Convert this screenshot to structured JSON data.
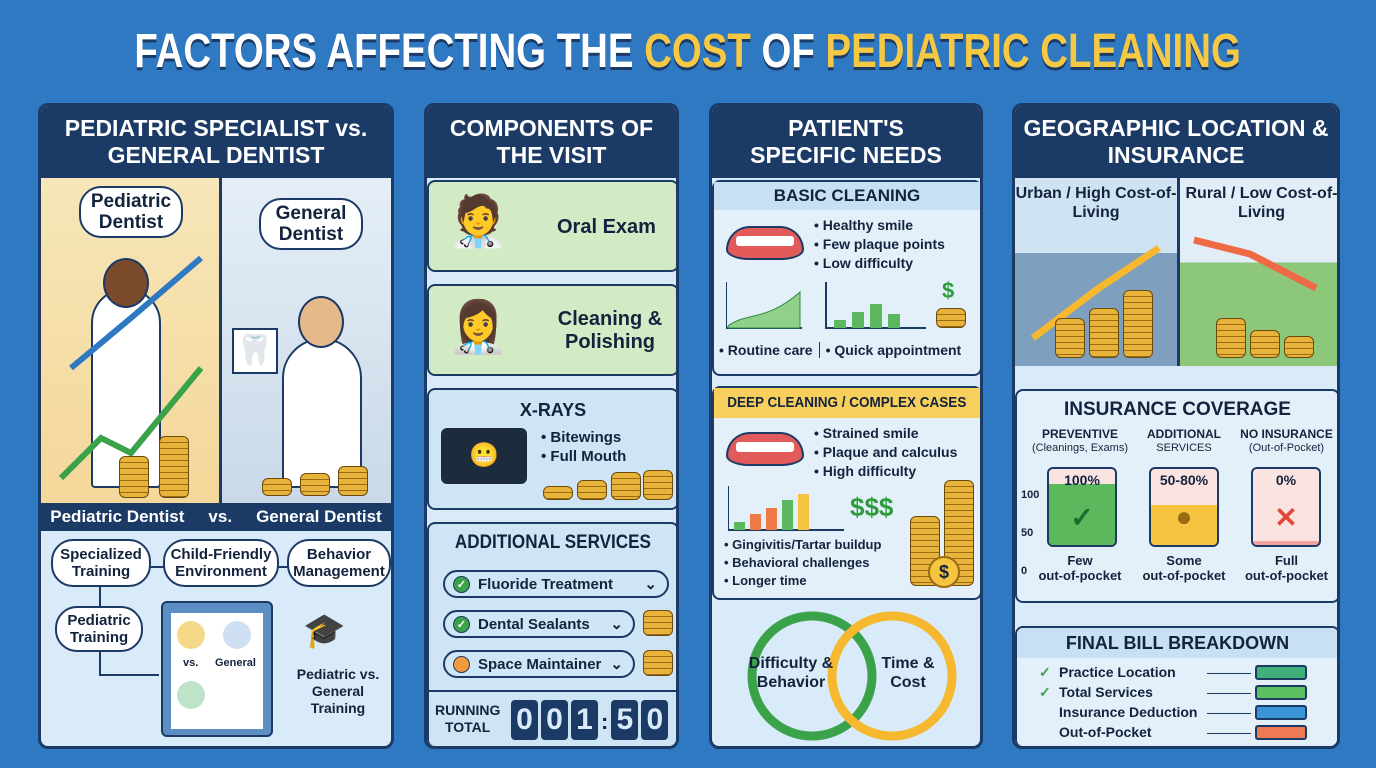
{
  "title": {
    "part1": "FACTORS AFFECTING THE ",
    "part2": "COST",
    "part3": " OF ",
    "part4": "PEDIATRIC CLEANING"
  },
  "panel1": {
    "heading": "PEDIATRIC SPECIALIST vs. GENERAL DENTIST",
    "bubble_left": "Pediatric Dentist",
    "bubble_right": "General Dentist",
    "compare_bar": {
      "left": "Pediatric Dentist",
      "vs": "vs.",
      "right": "General Dentist"
    },
    "factors": [
      "Specialized Training",
      "Child-Friendly Environment",
      "Behavior Management",
      "Pediatric Training"
    ],
    "clipboard": {
      "vs": "vs.",
      "general": "General"
    },
    "training_label": "Pediatric vs. General Training"
  },
  "panel2": {
    "heading": "COMPONENTS OF THE VISIT",
    "oral_exam": "Oral Exam",
    "cleaning": "Cleaning & Polishing",
    "xrays": {
      "title": "X-RAYS",
      "items": [
        "Bitewings",
        "Full Mouth"
      ]
    },
    "additional": {
      "title": "ADDITIONAL SERVICES",
      "items": [
        {
          "label": "Fluoride Treatment",
          "status": "checked"
        },
        {
          "label": "Dental Sealants",
          "status": "checked"
        },
        {
          "label": "Space Maintainer",
          "status": "pending"
        }
      ]
    },
    "running_total": {
      "label1": "RUNNING",
      "label2": "TOTAL",
      "digits": [
        "0",
        "0",
        "1",
        "5",
        "0"
      ],
      "sep": ":"
    }
  },
  "panel3": {
    "heading": "PATIENT'S SPECIFIC NEEDS",
    "basic": {
      "title": "BASIC CLEANING",
      "items": [
        "Healthy smile",
        "Few plaque points",
        "Low difficulty"
      ],
      "price": "$",
      "tags": [
        "Routine care",
        "Quick appointment"
      ]
    },
    "deep": {
      "title": "DEEP CLEANING / COMPLEX CASES",
      "items": [
        "Strained smile",
        "Plaque and calculus",
        "High difficulty"
      ],
      "price": "$$$",
      "items2": [
        "Gingivitis/Tartar buildup",
        "Behavioral challenges",
        "Longer time"
      ]
    },
    "cycle": {
      "left": "Difficulty & Behavior",
      "right": "Time & Cost"
    }
  },
  "panel4": {
    "heading": "GEOGRAPHIC LOCATION & INSURANCE",
    "urban": "Urban / High Cost-of-Living",
    "rural": "Rural / Low Cost-of-Living",
    "insurance": {
      "title": "INSURANCE COVERAGE",
      "axis": [
        "100",
        "50",
        "0"
      ],
      "columns": [
        {
          "head": "PREVENTIVE",
          "sub": "(Cleanings, Exams)",
          "pct": "100%",
          "coverage": 100,
          "foot1": "Few",
          "foot2": "out-of-pocket",
          "color": "#5cb85c"
        },
        {
          "head": "ADDITIONAL",
          "sub": "SERVICES",
          "pct": "50-80%",
          "coverage": 65,
          "foot1": "Some",
          "foot2": "out-of-pocket",
          "color": "#f5c542"
        },
        {
          "head": "NO INSURANCE",
          "sub": "(Out-of-Pocket)",
          "pct": "0%",
          "coverage": 0,
          "foot1": "Full",
          "foot2": "out-of-pocket",
          "color": "#f4a3a0"
        }
      ]
    },
    "final_bill": {
      "title": "FINAL BILL BREAKDOWN",
      "rows": [
        {
          "label": "Practice Location",
          "checked": true,
          "color": "#3fb07a"
        },
        {
          "label": "Total Services",
          "checked": true,
          "color": "#5cc062"
        },
        {
          "label": "Insurance Deduction",
          "checked": false,
          "color": "#3b95d6"
        },
        {
          "label": "Out-of-Pocket",
          "checked": false,
          "color": "#ee7a55"
        }
      ]
    }
  }
}
